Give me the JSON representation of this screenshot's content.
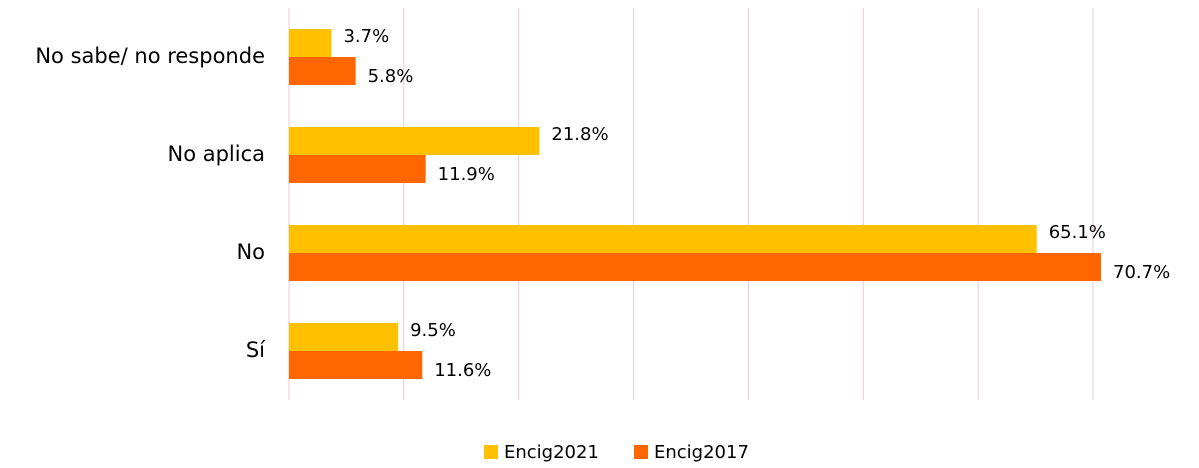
{
  "chart_data": {
    "type": "hbar",
    "categories": [
      "No sabe/ no responde",
      "No aplica",
      "No",
      "Sí"
    ],
    "series": [
      {
        "name": "Encig2021",
        "color": "#FFC000",
        "values": [
          3.7,
          21.8,
          65.1,
          9.5
        ],
        "value_labels": [
          "3.7%",
          "21.8%",
          "65.1%",
          "9.5%"
        ]
      },
      {
        "name": "Encig2017",
        "color": "#FF6600",
        "values": [
          5.8,
          11.9,
          70.7,
          11.6
        ],
        "value_labels": [
          "5.8%",
          "11.9%",
          "70.7%",
          "11.6%"
        ]
      }
    ],
    "xlim": [
      0,
      70
    ],
    "xticks": [
      0,
      10,
      20,
      30,
      40,
      50,
      60,
      70
    ],
    "grid": true,
    "legend": "bottom"
  }
}
